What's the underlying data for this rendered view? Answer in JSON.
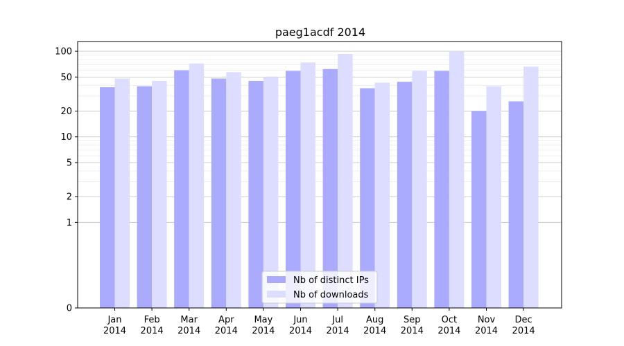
{
  "chart_data": {
    "type": "bar",
    "title": "paeg1acdf 2014",
    "xlabel": "",
    "ylabel": "",
    "yscale": "symlog",
    "ylim": [
      0,
      130
    ],
    "yticks": [
      0,
      1,
      2,
      5,
      10,
      20,
      50,
      100
    ],
    "grid": true,
    "legend_position": "bottom-center",
    "categories": [
      [
        "Jan",
        "2014"
      ],
      [
        "Feb",
        "2014"
      ],
      [
        "Mar",
        "2014"
      ],
      [
        "Apr",
        "2014"
      ],
      [
        "May",
        "2014"
      ],
      [
        "Jun",
        "2014"
      ],
      [
        "Jul",
        "2014"
      ],
      [
        "Aug",
        "2014"
      ],
      [
        "Sep",
        "2014"
      ],
      [
        "Oct",
        "2014"
      ],
      [
        "Nov",
        "2014"
      ],
      [
        "Dec",
        "2014"
      ]
    ],
    "series": [
      {
        "name": "Nb of distinct IPs",
        "color": "#aaaaff",
        "values": [
          38,
          39,
          60,
          48,
          45,
          59,
          62,
          37,
          44,
          59,
          20,
          26
        ]
      },
      {
        "name": "Nb of downloads",
        "color": "#ddddff",
        "values": [
          48,
          45,
          72,
          57,
          50,
          74,
          93,
          43,
          59,
          100,
          39,
          66
        ]
      }
    ]
  }
}
